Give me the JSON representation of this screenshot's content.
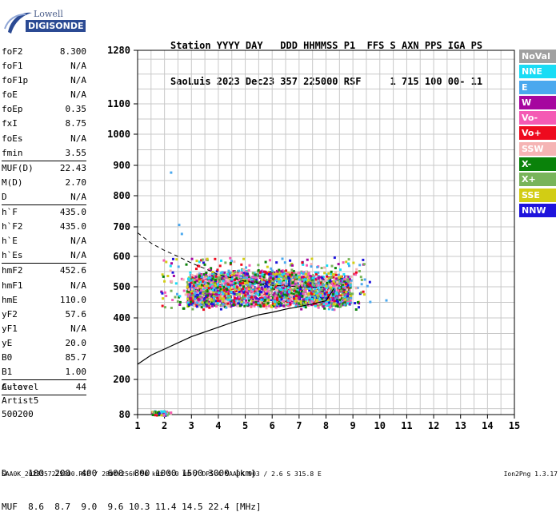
{
  "logo": {
    "line1": "Lowell",
    "line2": "DIGISONDE"
  },
  "header": {
    "labels": "Station YYYY DAY   DDD HHMMSS P1  FFS S AXN PPS IGA PS",
    "values": "SaoLuis 2023 Dec23 357 225000 RSF     1 715 100 00- 11"
  },
  "params": {
    "group1": [
      {
        "label": "foF2",
        "value": "8.300"
      },
      {
        "label": "foF1",
        "value": "N/A"
      },
      {
        "label": "foF1p",
        "value": "N/A"
      },
      {
        "label": "foE",
        "value": "N/A"
      },
      {
        "label": "foEp",
        "value": "0.35"
      },
      {
        "label": "fxI",
        "value": "8.75"
      },
      {
        "label": "foEs",
        "value": "N/A"
      },
      {
        "label": "fmin",
        "value": "3.55"
      }
    ],
    "group2": [
      {
        "label": "MUF(D)",
        "value": "22.43"
      },
      {
        "label": "M(D)",
        "value": "2.70"
      },
      {
        "label": "D",
        "value": "N/A"
      }
    ],
    "group3": [
      {
        "label": "h`F",
        "value": "435.0"
      },
      {
        "label": "h`F2",
        "value": "435.0"
      },
      {
        "label": "h`E",
        "value": "N/A"
      },
      {
        "label": "h`Es",
        "value": "N/A"
      }
    ],
    "group4": [
      {
        "label": "hmF2",
        "value": "452.6"
      },
      {
        "label": "hmF1",
        "value": "N/A"
      },
      {
        "label": "hmE",
        "value": "110.0"
      },
      {
        "label": "yF2",
        "value": "57.6"
      },
      {
        "label": "yF1",
        "value": "N/A"
      },
      {
        "label": "yE",
        "value": "20.0"
      },
      {
        "label": "B0",
        "value": "85.7"
      },
      {
        "label": "B1",
        "value": "1.00"
      }
    ],
    "group5": [
      {
        "label": "C-level",
        "value": "44"
      }
    ]
  },
  "auto_block": {
    "line1": "Auto:",
    "line2": "Artist5",
    "line3": "500200"
  },
  "legend": [
    {
      "label": "NoVal",
      "color": "#a0a0a0"
    },
    {
      "label": "NNE",
      "color": "#19dcf5"
    },
    {
      "label": "E",
      "color": "#4aa8ee"
    },
    {
      "label": "W",
      "color": "#a6069f"
    },
    {
      "label": "Vo-",
      "color": "#f45ab4"
    },
    {
      "label": "Vo+",
      "color": "#ee0a1e"
    },
    {
      "label": "SSW",
      "color": "#f5b4b4"
    },
    {
      "label": "X-",
      "color": "#0a820a"
    },
    {
      "label": "X+",
      "color": "#78b45a"
    },
    {
      "label": "SSE",
      "color": "#d2cd14"
    },
    {
      "label": "NNW",
      "color": "#1e14dc"
    }
  ],
  "bottom": {
    "d_row": "D    100  200  400  600  800 1000 1500 3000 [km]",
    "muf_row": "MUF  8.6  8.7  9.0  9.6 10.3 11.4 14.5 22.4 [MHz]"
  },
  "footer": {
    "left": "SAA0K_2023357225000.RSF / 280fx256h 50 kHz 5.0 km / DPS-4 SAA0K 903 / 2.6 S 315.8 E",
    "right": "Ion2Png 1.3.17"
  },
  "chart_data": {
    "type": "scatter",
    "xlabel": "",
    "ylabel": "",
    "x_ticks": [
      1,
      2,
      3,
      4,
      5,
      6,
      7,
      8,
      9,
      10,
      11,
      12,
      13,
      14,
      15
    ],
    "y_ticks": [
      80,
      200,
      300,
      400,
      500,
      600,
      700,
      800,
      900,
      1000,
      1100,
      1280
    ],
    "xlim": [
      1,
      15
    ],
    "ylim": [
      80,
      1280
    ],
    "grid": true,
    "y_scale": "nonlinear",
    "y_tick_positions_note": "virtual height axis with uneven spacing",
    "echo_region": {
      "x_range": [
        1.8,
        9.6
      ],
      "y_range": [
        430,
        600
      ],
      "dense_core": [
        [
          2.8,
          8.9
        ],
        [
          440,
          520
        ]
      ]
    },
    "e_region_echoes": {
      "x_range": [
        1.5,
        2.2
      ],
      "y_range": [
        80,
        95
      ]
    },
    "profile_curve": {
      "name": "",
      "x": [
        1.0,
        1.5,
        2.0,
        2.5,
        3.0,
        3.5,
        4.0,
        4.5,
        5.0,
        5.5,
        6.0,
        6.5,
        7.0,
        7.5,
        8.0,
        8.3
      ],
      "y": [
        250,
        280,
        300,
        320,
        340,
        355,
        370,
        385,
        398,
        410,
        418,
        428,
        436,
        445,
        455,
        495
      ]
    },
    "dashed_curve": {
      "x": [
        1.0,
        1.5,
        2.0,
        2.5,
        3.0,
        3.5,
        4.0,
        5.0,
        6.0,
        7.0,
        8.0
      ],
      "y": [
        680,
        645,
        620,
        600,
        578,
        560,
        540,
        518,
        505,
        500,
        498
      ]
    }
  }
}
